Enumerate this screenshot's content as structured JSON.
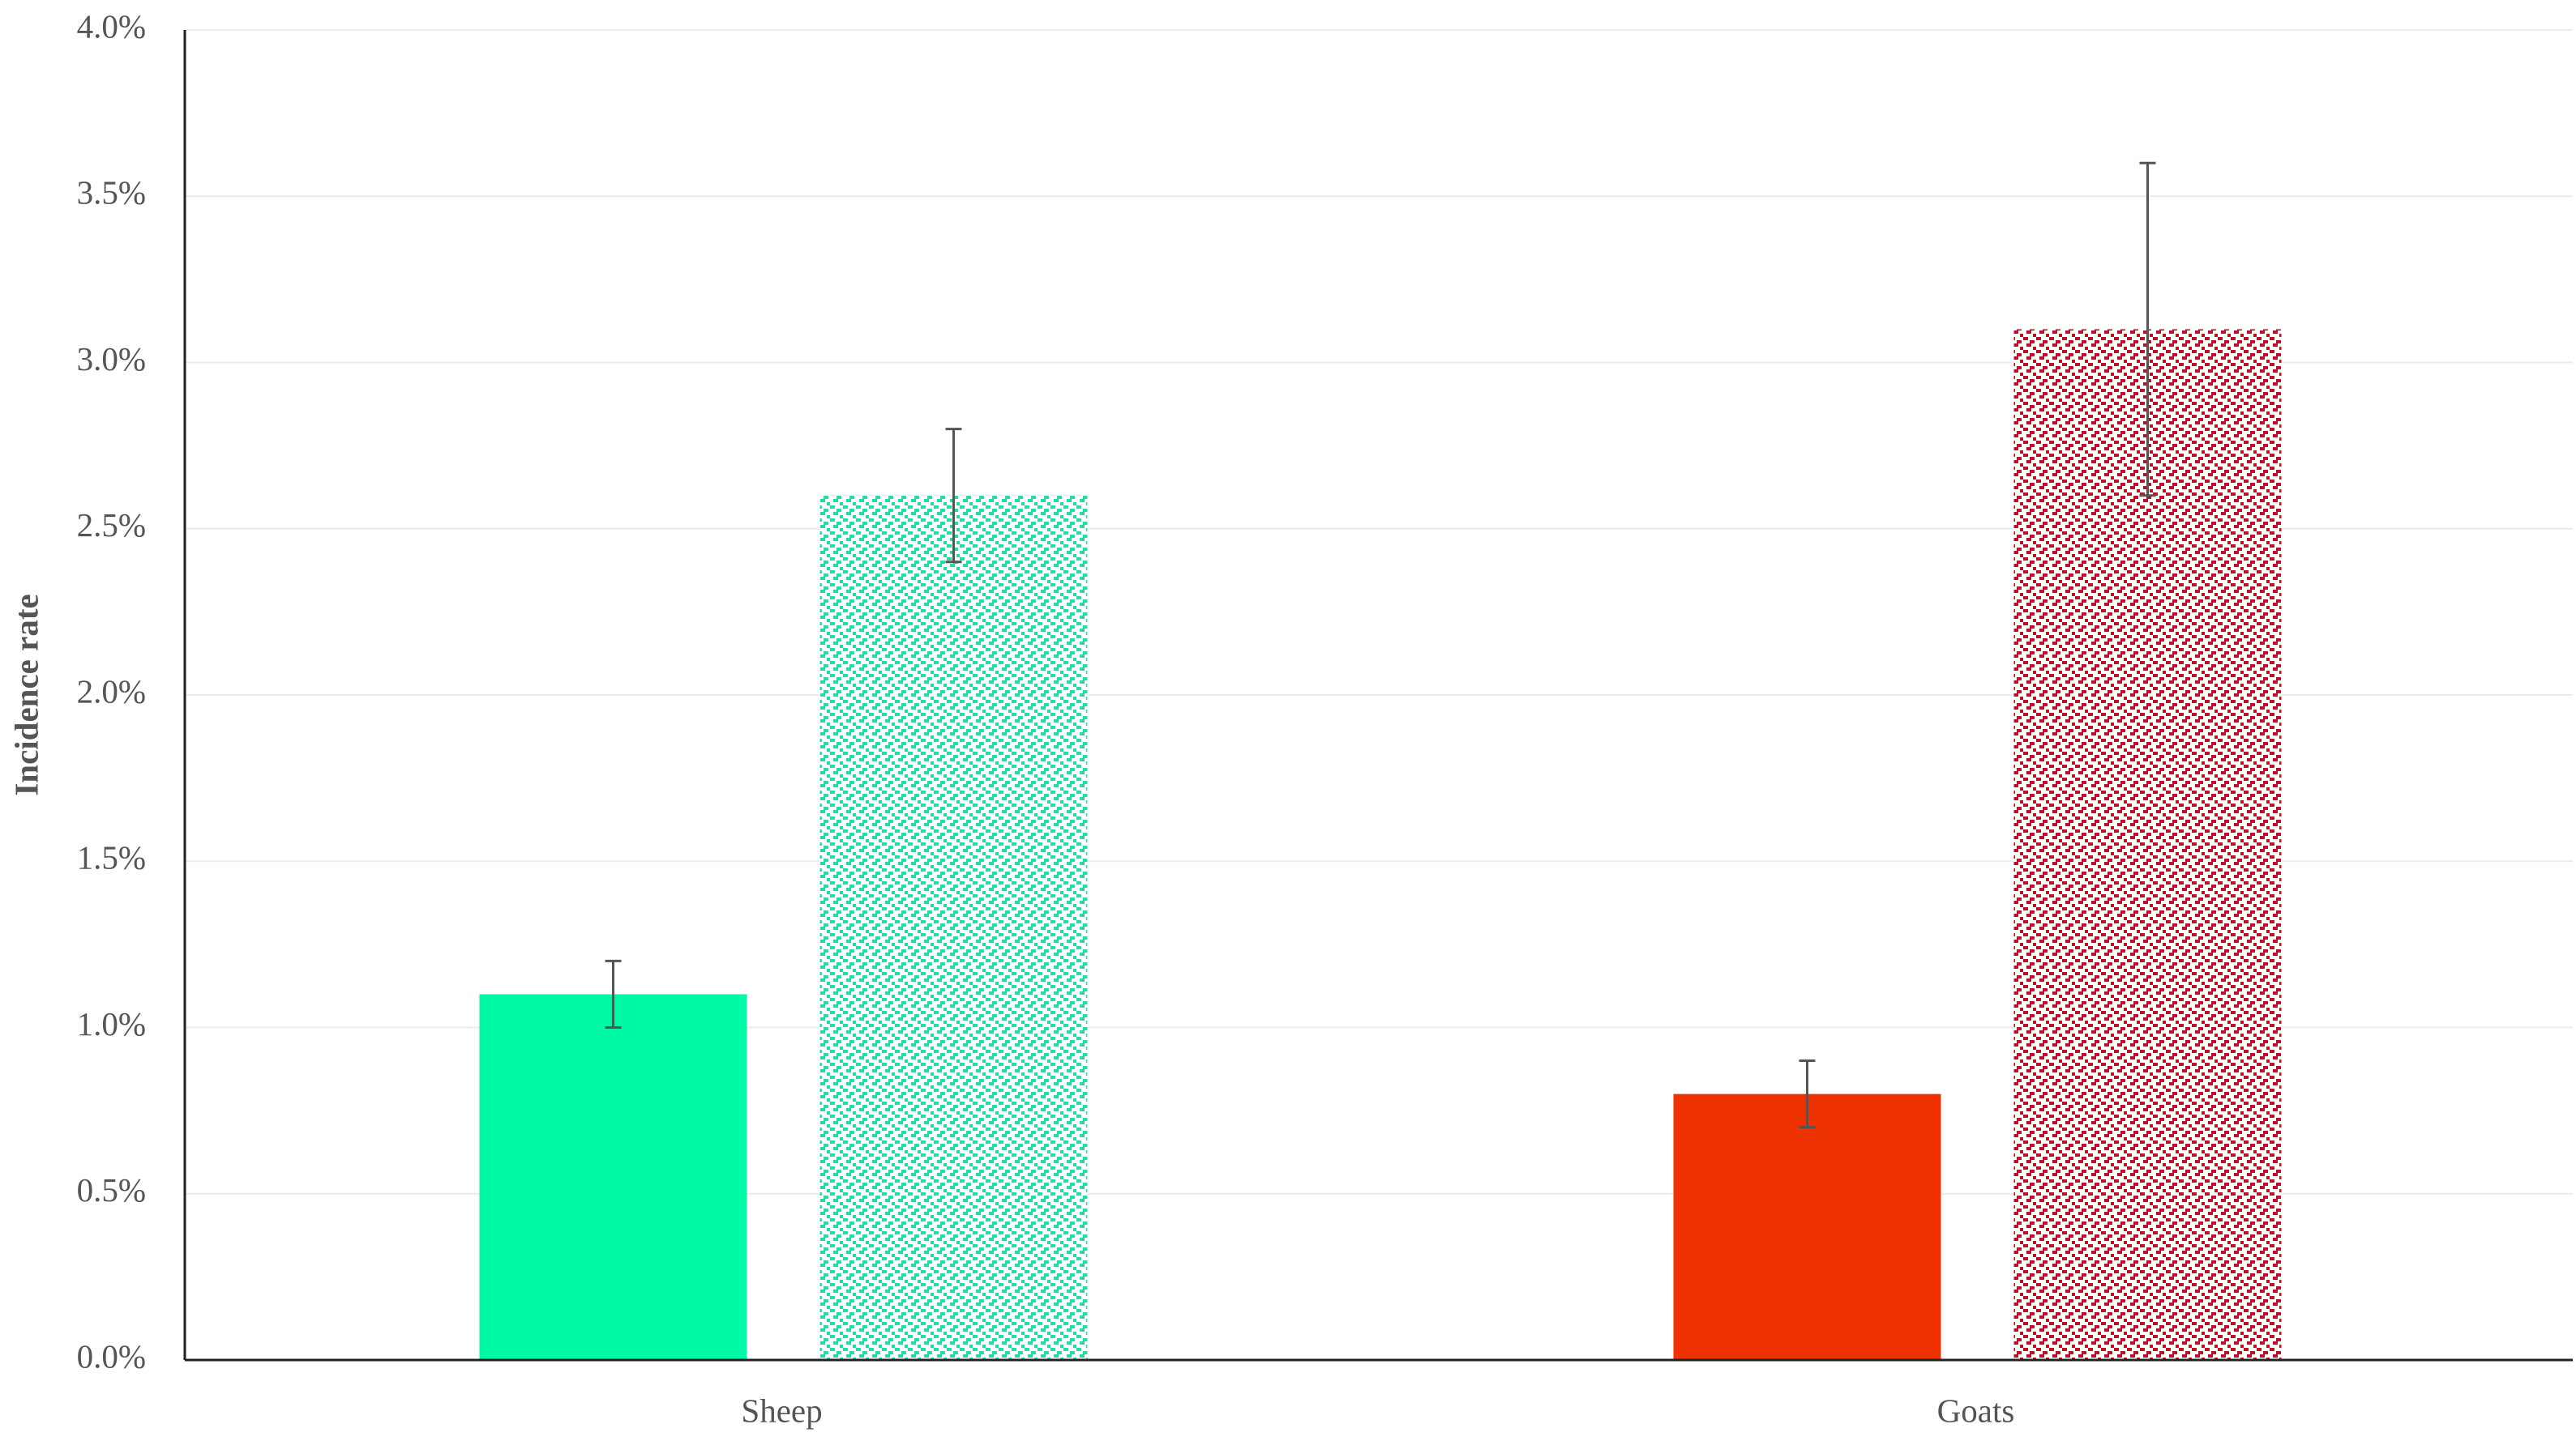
{
  "chart_data": {
    "type": "bar",
    "y_label": "Incidence rate",
    "categories": [
      "Sheep",
      "Goats"
    ],
    "series": [
      {
        "colors": [
          "#00f9a6",
          "#ee3300"
        ],
        "pattern": "solid",
        "values": [
          1.1,
          0.8
        ],
        "errors": [
          0.1,
          0.1
        ]
      },
      {
        "colors": [
          "#22dda0",
          "#bb1122"
        ],
        "pattern": "dots",
        "values": [
          2.6,
          3.1
        ],
        "errors": [
          0.2,
          0.5
        ]
      }
    ],
    "ylim": [
      0,
      4
    ],
    "yticks": [
      {
        "value": 0,
        "label": "0.0%"
      },
      {
        "value": 0.5,
        "label": "0.5%"
      },
      {
        "value": 1,
        "label": "1.0%"
      },
      {
        "value": 1.5,
        "label": "1.5%"
      },
      {
        "value": 2,
        "label": "2.0%"
      },
      {
        "value": 2.5,
        "label": "2.5%"
      },
      {
        "value": 3,
        "label": "3.0%"
      },
      {
        "value": 3.5,
        "label": "3.5%"
      },
      {
        "value": 4,
        "label": "4.0%"
      }
    ],
    "grid": true
  }
}
